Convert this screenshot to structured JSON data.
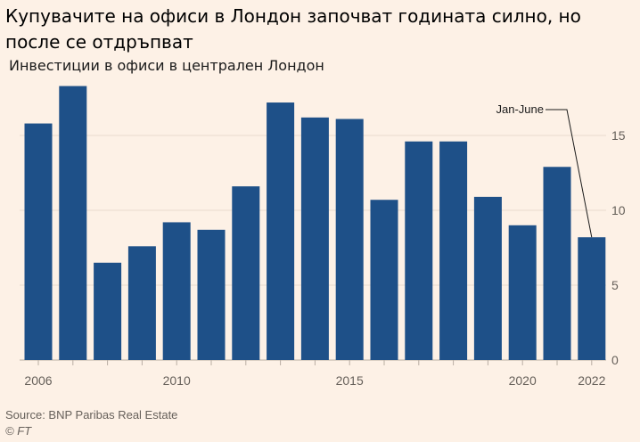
{
  "title": "Купувачите на офиси в Лондон започват годината силно, но после се отдръпват",
  "subtitle": "Инвестиции в офиси в централен Лондон",
  "source": "Source: BNP Paribas Real Estate",
  "credit": "© FT",
  "colors": {
    "background": "#fdf1e6",
    "bar": "#1e5088",
    "grid": "#e9dccf",
    "axis": "#66605a"
  },
  "chart_data": {
    "type": "bar",
    "categories": [
      "2006",
      "2007",
      "2008",
      "2009",
      "2010",
      "2011",
      "2012",
      "2013",
      "2014",
      "2015",
      "2016",
      "2017",
      "2018",
      "2019",
      "2020",
      "2021",
      "2022"
    ],
    "values": [
      15.8,
      18.3,
      6.5,
      7.6,
      9.2,
      8.7,
      11.6,
      17.2,
      16.2,
      16.1,
      10.7,
      14.6,
      14.6,
      10.9,
      9.0,
      12.9,
      8.2
    ],
    "x_tick_labels": [
      {
        "index": 0,
        "label": "2006"
      },
      {
        "index": 4,
        "label": "2010"
      },
      {
        "index": 9,
        "label": "2015"
      },
      {
        "index": 14,
        "label": "2020"
      },
      {
        "index": 16,
        "label": "2022"
      }
    ],
    "y_ticks": [
      0,
      5,
      10,
      15
    ],
    "ylim": [
      0,
      18.5
    ],
    "annotation": {
      "index": 16,
      "text": "Jan-June"
    },
    "title": "Купувачите на офиси в Лондон започват годината силно, но после се отдръпват",
    "xlabel": "",
    "ylabel": ""
  }
}
